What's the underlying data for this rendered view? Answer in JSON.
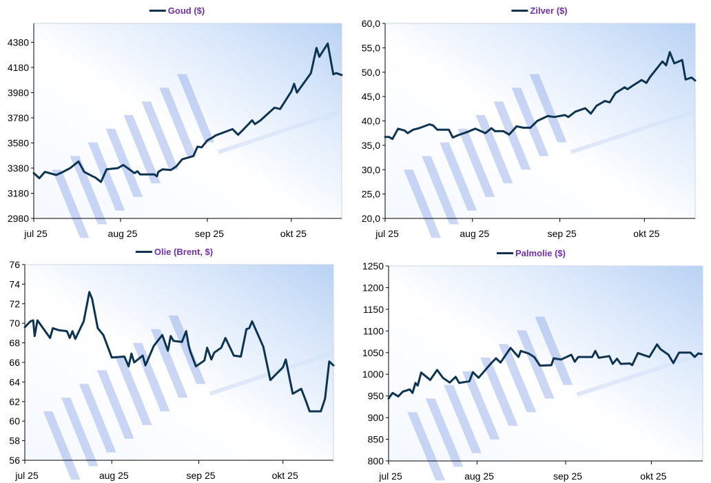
{
  "colors": {
    "line": "#0d3350",
    "title": "#7030a0",
    "axis": "#000000"
  },
  "chart_data": [
    {
      "type": "line",
      "title": "Goud ($)",
      "x_unit": "days since 1 jul 2025",
      "xlim": [
        0,
        110
      ],
      "x_ticks": [
        {
          "x": 0,
          "label": "jul 25"
        },
        {
          "x": 31,
          "label": "aug 25"
        },
        {
          "x": 62,
          "label": "sep 25"
        },
        {
          "x": 92,
          "label": "okt 25"
        }
      ],
      "ylim": [
        2980,
        4530
      ],
      "y_ticks": [
        "2980",
        "3180",
        "3380",
        "3580",
        "3780",
        "3980",
        "4180",
        "4380"
      ],
      "y_tick_values": [
        2980,
        3180,
        3380,
        3580,
        3780,
        3980,
        4180,
        4380
      ],
      "legend": "top-center",
      "points": [
        [
          0,
          3340
        ],
        [
          2,
          3300
        ],
        [
          4,
          3350
        ],
        [
          8,
          3325
        ],
        [
          10,
          3345
        ],
        [
          13,
          3380
        ],
        [
          16,
          3433
        ],
        [
          18,
          3350
        ],
        [
          21,
          3315
        ],
        [
          22,
          3305
        ],
        [
          24,
          3270
        ],
        [
          26,
          3370
        ],
        [
          30,
          3380
        ],
        [
          32,
          3405
        ],
        [
          36,
          3340
        ],
        [
          37,
          3355
        ],
        [
          38,
          3330
        ],
        [
          43,
          3330
        ],
        [
          44,
          3315
        ],
        [
          44.5,
          3350
        ],
        [
          46,
          3370
        ],
        [
          49,
          3365
        ],
        [
          51,
          3395
        ],
        [
          53,
          3450
        ],
        [
          57,
          3475
        ],
        [
          58.5,
          3550
        ],
        [
          60,
          3545
        ],
        [
          62,
          3600
        ],
        [
          64,
          3625
        ],
        [
          65,
          3640
        ],
        [
          71,
          3690
        ],
        [
          73,
          3645
        ],
        [
          75,
          3690
        ],
        [
          78,
          3760
        ],
        [
          79,
          3730
        ],
        [
          81,
          3760
        ],
        [
          86,
          3860
        ],
        [
          88,
          3850
        ],
        [
          92,
          3990
        ],
        [
          93,
          4050
        ],
        [
          94,
          3980
        ],
        [
          99,
          4135
        ],
        [
          101,
          4335
        ],
        [
          102,
          4265
        ],
        [
          105,
          4370
        ],
        [
          107,
          4125
        ],
        [
          108,
          4135
        ],
        [
          110,
          4120
        ]
      ]
    },
    {
      "type": "line",
      "title": "Zilver ($)",
      "x_unit": "days since 1 jul 2025",
      "xlim": [
        0,
        110
      ],
      "x_ticks": [
        {
          "x": 0,
          "label": "jul 25"
        },
        {
          "x": 31,
          "label": "aug 25"
        },
        {
          "x": 62,
          "label": "sep 25"
        },
        {
          "x": 92,
          "label": "okt 25"
        }
      ],
      "ylim": [
        20,
        60
      ],
      "y_ticks": [
        "20,0",
        "25,0",
        "30,0",
        "35,0",
        "40,0",
        "45,0",
        "50,0",
        "55,0",
        "60,0"
      ],
      "y_tick_values": [
        20,
        25,
        30,
        35,
        40,
        45,
        50,
        55,
        60
      ],
      "legend": "top-center",
      "points": [
        [
          0,
          36.7
        ],
        [
          1.4,
          36.7
        ],
        [
          2.6,
          36.3
        ],
        [
          4.6,
          38.4
        ],
        [
          7,
          38.0
        ],
        [
          8,
          37.5
        ],
        [
          10,
          38.2
        ],
        [
          12,
          38.5
        ],
        [
          15.7,
          39.3
        ],
        [
          17,
          39.1
        ],
        [
          18.5,
          38.2
        ],
        [
          22.6,
          38.2
        ],
        [
          24,
          36.6
        ],
        [
          26,
          37.1
        ],
        [
          29,
          37.7
        ],
        [
          32,
          38.4
        ],
        [
          35.6,
          37.5
        ],
        [
          37.7,
          38.5
        ],
        [
          39,
          37.9
        ],
        [
          42,
          37.9
        ],
        [
          44,
          37.2
        ],
        [
          46.7,
          38.9
        ],
        [
          49,
          38.6
        ],
        [
          51.5,
          38.6
        ],
        [
          54,
          40.0
        ],
        [
          57.7,
          41.0
        ],
        [
          60,
          40.8
        ],
        [
          63.8,
          41.2
        ],
        [
          65,
          40.8
        ],
        [
          67.5,
          41.9
        ],
        [
          71,
          42.6
        ],
        [
          73,
          41.5
        ],
        [
          75,
          43.1
        ],
        [
          78,
          44.1
        ],
        [
          79.7,
          43.8
        ],
        [
          81.7,
          45.7
        ],
        [
          85,
          46.9
        ],
        [
          86,
          46.5
        ],
        [
          87.5,
          47.1
        ],
        [
          91,
          48.4
        ],
        [
          92.7,
          47.8
        ],
        [
          94,
          49.0
        ],
        [
          98.4,
          52.2
        ],
        [
          99.7,
          51.4
        ],
        [
          101,
          54.1
        ],
        [
          102.6,
          51.8
        ],
        [
          105.4,
          52.5
        ],
        [
          106.6,
          48.5
        ],
        [
          108.7,
          48.9
        ],
        [
          110,
          48.3
        ]
      ]
    },
    {
      "type": "line",
      "title": "Olie (Brent, $)",
      "x_unit": "days since 1 jul 2025",
      "xlim": [
        0,
        110
      ],
      "x_ticks": [
        {
          "x": 0,
          "label": "jul 25"
        },
        {
          "x": 31,
          "label": "aug 25"
        },
        {
          "x": 62,
          "label": "sep 25"
        },
        {
          "x": 92,
          "label": "okt 25"
        }
      ],
      "ylim": [
        56,
        76
      ],
      "y_ticks": [
        "56",
        "58",
        "60",
        "62",
        "64",
        "66",
        "68",
        "70",
        "72",
        "74",
        "76"
      ],
      "y_tick_values": [
        56,
        58,
        60,
        62,
        64,
        66,
        68,
        70,
        72,
        74,
        76
      ],
      "legend": "top-center",
      "points": [
        [
          0,
          69.6
        ],
        [
          2,
          70.2
        ],
        [
          3,
          70.3
        ],
        [
          3.5,
          68.7
        ],
        [
          4.5,
          70.3
        ],
        [
          9,
          68.5
        ],
        [
          10,
          69.5
        ],
        [
          12,
          69.3
        ],
        [
          15,
          69.2
        ],
        [
          16,
          68.5
        ],
        [
          17,
          69.2
        ],
        [
          18,
          68.4
        ],
        [
          21,
          70.2
        ],
        [
          23,
          73.2
        ],
        [
          24,
          72.5
        ],
        [
          26,
          69.5
        ],
        [
          28,
          68.8
        ],
        [
          31,
          66.5
        ],
        [
          35.5,
          66.6
        ],
        [
          37,
          65.6
        ],
        [
          38,
          66.9
        ],
        [
          39,
          66.0
        ],
        [
          42,
          66.7
        ],
        [
          43,
          65.7
        ],
        [
          46,
          67.7
        ],
        [
          49,
          68.8
        ],
        [
          51,
          67.2
        ],
        [
          52,
          68.7
        ],
        [
          53,
          68.2
        ],
        [
          56,
          68.1
        ],
        [
          57.5,
          69.2
        ],
        [
          58.5,
          67.6
        ],
        [
          59,
          67.1
        ],
        [
          61,
          65.6
        ],
        [
          64,
          66.2
        ],
        [
          65,
          67.5
        ],
        [
          66.5,
          66.3
        ],
        [
          67.5,
          67.0
        ],
        [
          70,
          67.5
        ],
        [
          71.5,
          68.5
        ],
        [
          73,
          67.6
        ],
        [
          74.5,
          66.7
        ],
        [
          77,
          66.6
        ],
        [
          79,
          69.4
        ],
        [
          80,
          69.5
        ],
        [
          81,
          70.2
        ],
        [
          85,
          67.6
        ],
        [
          87.5,
          64.2
        ],
        [
          92,
          65.5
        ],
        [
          93,
          66.3
        ],
        [
          95.5,
          62.8
        ],
        [
          98.5,
          63.3
        ],
        [
          100,
          62.2
        ],
        [
          101.5,
          61.0
        ],
        [
          105.5,
          61.0
        ],
        [
          107,
          62.3
        ],
        [
          108.5,
          66.1
        ],
        [
          110,
          65.7
        ]
      ]
    },
    {
      "type": "line",
      "title": "Palmolie ($)",
      "x_unit": "days since 1 jul 2025",
      "xlim": [
        0,
        110
      ],
      "x_ticks": [
        {
          "x": 0,
          "label": "jul 25"
        },
        {
          "x": 31,
          "label": "aug 25"
        },
        {
          "x": 62,
          "label": "sep 25"
        },
        {
          "x": 92,
          "label": "okt 25"
        }
      ],
      "ylim": [
        800,
        1250
      ],
      "y_ticks": [
        "800",
        "850",
        "900",
        "950",
        "1000",
        "1050",
        "1100",
        "1150",
        "1200",
        "1250"
      ],
      "y_tick_values": [
        800,
        850,
        900,
        950,
        1000,
        1050,
        1100,
        1150,
        1200,
        1250
      ],
      "legend": "top-center",
      "points": [
        [
          0,
          944
        ],
        [
          1.4,
          957
        ],
        [
          3.4,
          949
        ],
        [
          5,
          960
        ],
        [
          7.4,
          965
        ],
        [
          8.4,
          957
        ],
        [
          9.4,
          980
        ],
        [
          10.2,
          974
        ],
        [
          11.4,
          1004
        ],
        [
          14.6,
          987
        ],
        [
          17,
          1010
        ],
        [
          19,
          992
        ],
        [
          21.4,
          981
        ],
        [
          23.5,
          994
        ],
        [
          24.7,
          980
        ],
        [
          28.3,
          984
        ],
        [
          29.5,
          1005
        ],
        [
          31.5,
          992
        ],
        [
          36,
          1026
        ],
        [
          37.6,
          1037
        ],
        [
          39.2,
          1027
        ],
        [
          42.7,
          1061
        ],
        [
          45.5,
          1040
        ],
        [
          46.3,
          1054
        ],
        [
          49,
          1048
        ],
        [
          51,
          1040
        ],
        [
          53,
          1020
        ],
        [
          57,
          1021
        ],
        [
          57.8,
          1037
        ],
        [
          60.4,
          1034
        ],
        [
          64,
          1045
        ],
        [
          65.2,
          1029
        ],
        [
          66.4,
          1040
        ],
        [
          71.3,
          1040
        ],
        [
          72.4,
          1054
        ],
        [
          73.6,
          1038
        ],
        [
          77.3,
          1042
        ],
        [
          78.5,
          1024
        ],
        [
          80,
          1036
        ],
        [
          81.3,
          1024
        ],
        [
          84.5,
          1025
        ],
        [
          85.3,
          1021
        ],
        [
          87.3,
          1049
        ],
        [
          91.3,
          1040
        ],
        [
          94,
          1069
        ],
        [
          95.2,
          1058
        ],
        [
          98,
          1045
        ],
        [
          99.7,
          1026
        ],
        [
          101.7,
          1050
        ],
        [
          105.7,
          1050
        ],
        [
          107.2,
          1040
        ],
        [
          108.4,
          1048
        ],
        [
          109.6,
          1047
        ]
      ]
    }
  ]
}
